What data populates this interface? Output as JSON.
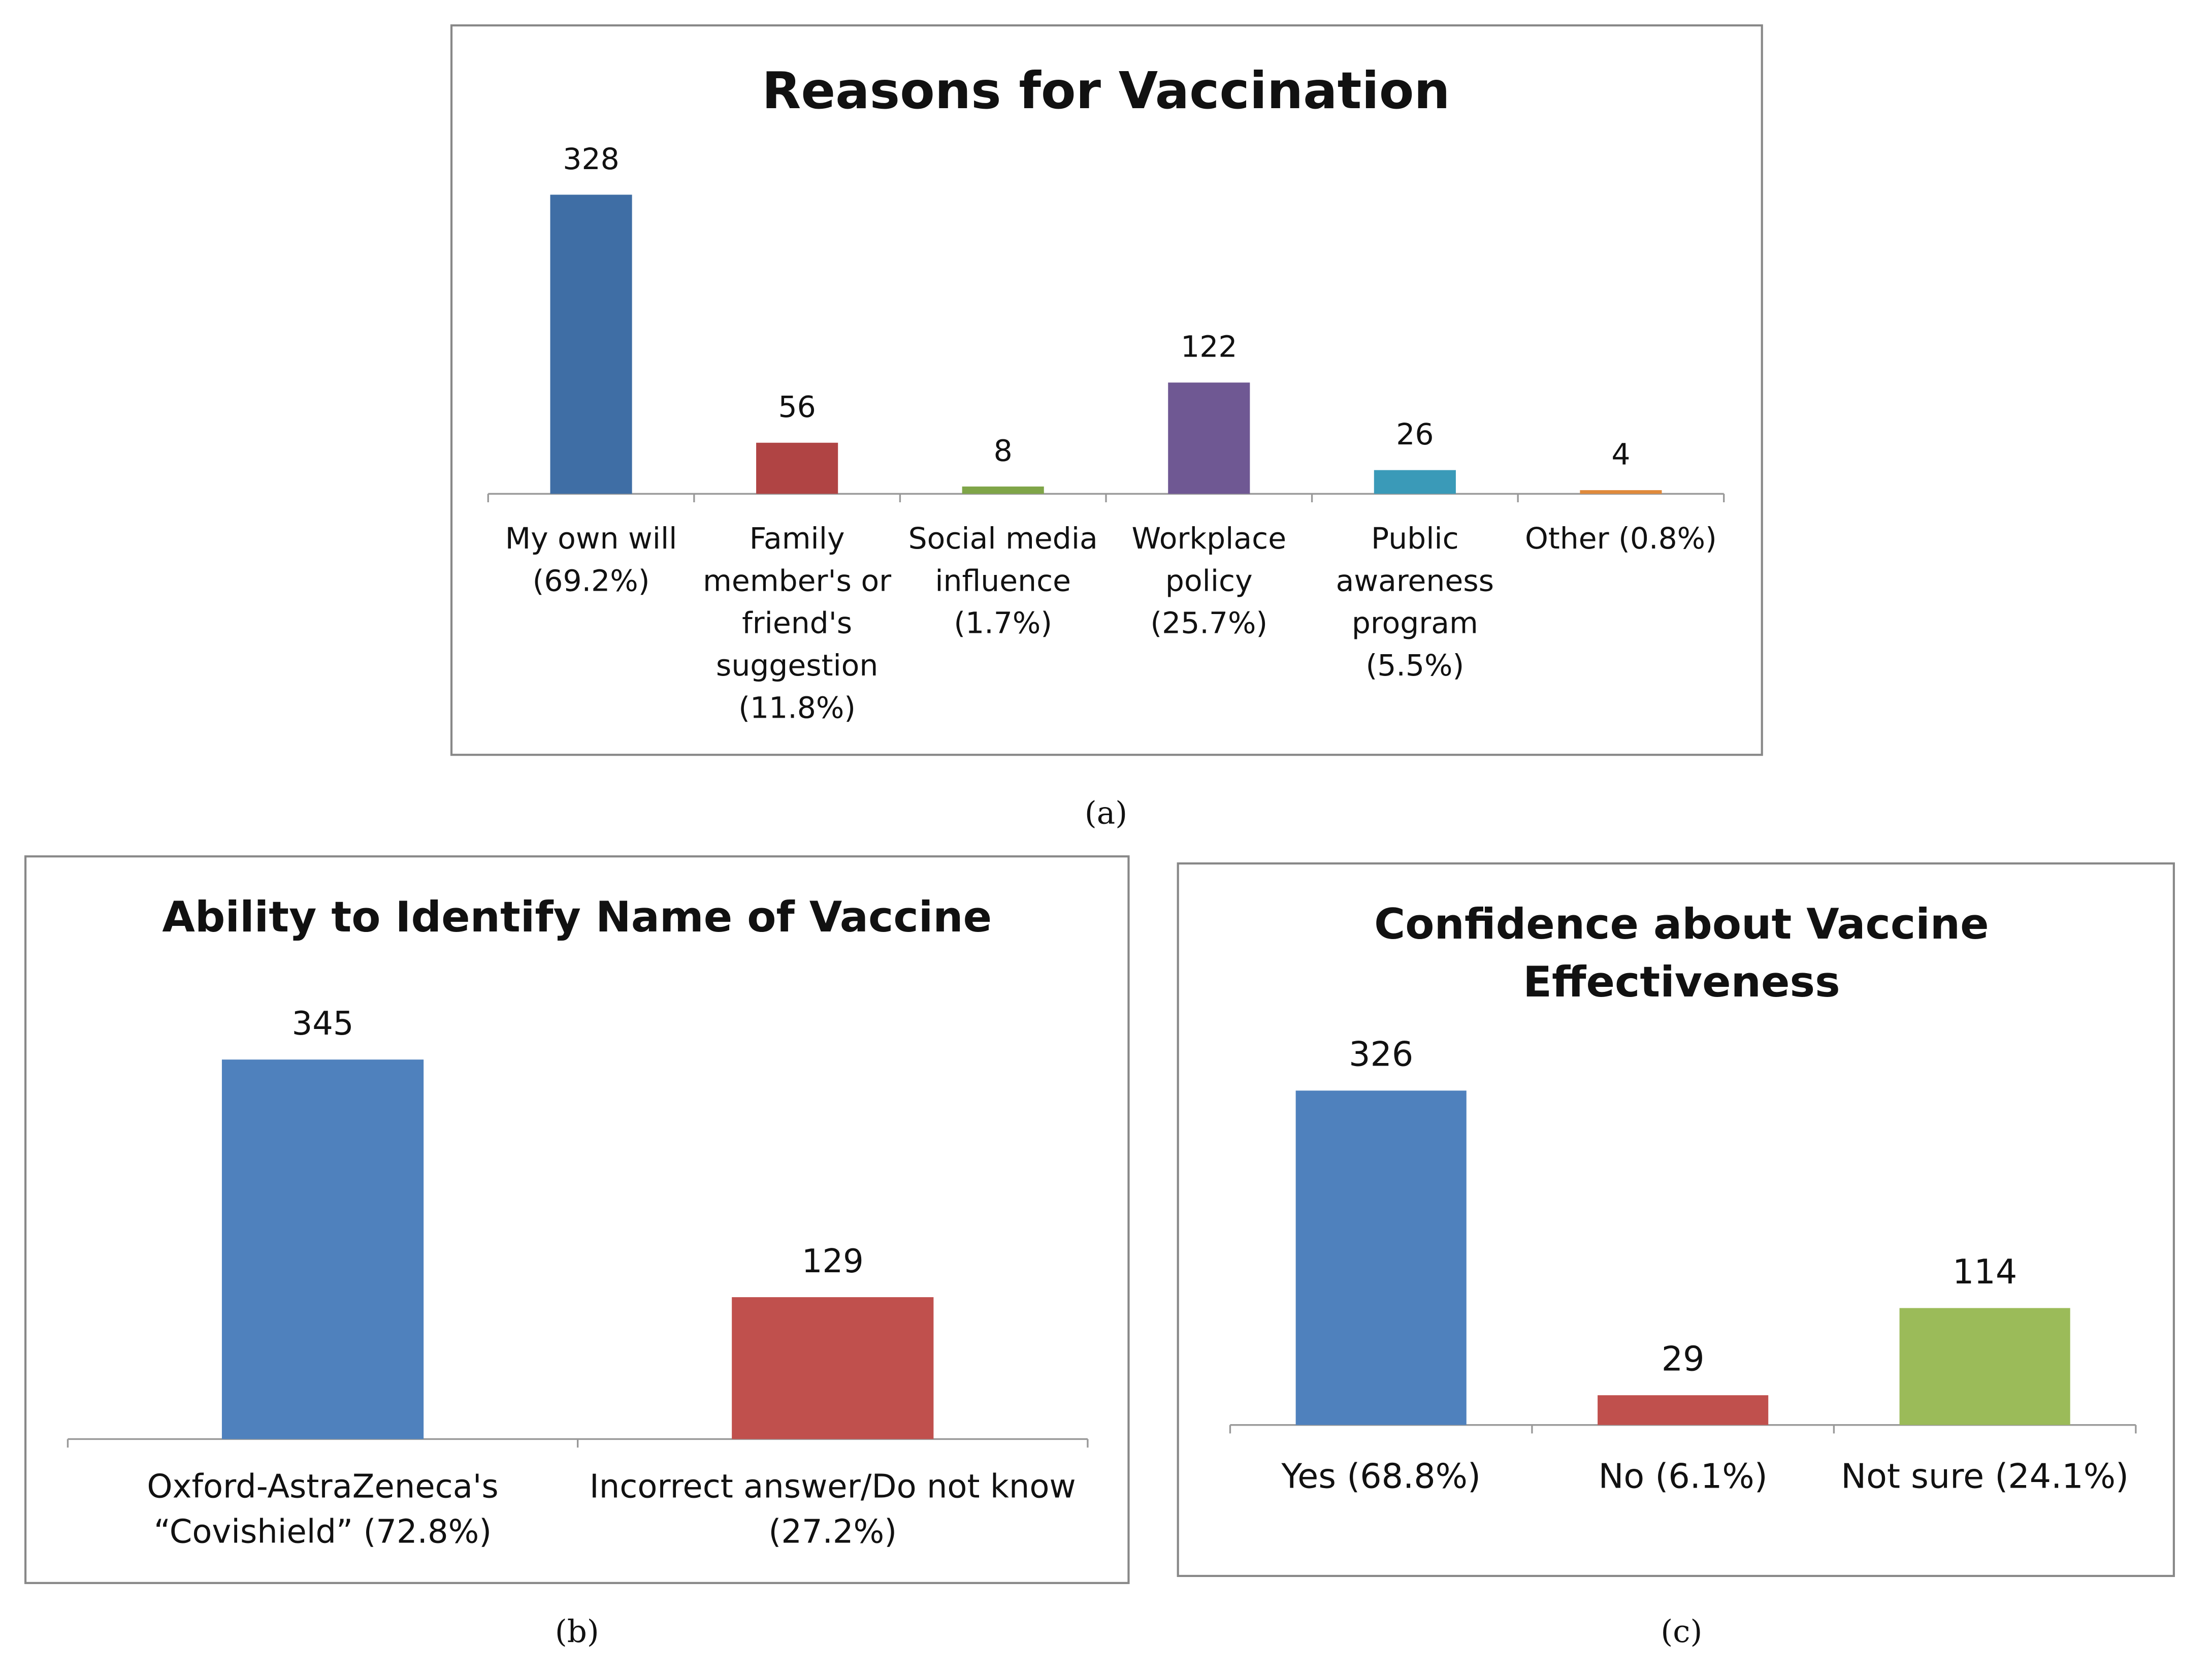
{
  "chart_data": [
    {
      "type": "bar",
      "title": "Reasons for Vaccination",
      "caption": "(a)",
      "categories": [
        "My own will (69.2%)",
        "Family member's or friend's suggestion (11.8%)",
        "Social media influence (1.7%)",
        "Workplace policy (25.7%)",
        "Public awareness program (5.5%)",
        "Other (0.8%)"
      ],
      "values": [
        328,
        56,
        8,
        122,
        26,
        4
      ],
      "colors": [
        "#3f6ea5",
        "#b04444",
        "#7fa548",
        "#6f5893",
        "#3a9ab8",
        "#e08a3c"
      ]
    },
    {
      "type": "bar",
      "title": "Ability to Identify Name of Vaccine",
      "caption": "(b)",
      "categories": [
        "Oxford-AstraZeneca's “Covishield” (72.8%)",
        "Incorrect answer/Do not know (27.2%)"
      ],
      "values": [
        345,
        129
      ],
      "colors": [
        "#4f81bd",
        "#c0504d"
      ]
    },
    {
      "type": "bar",
      "title": "Confidence about Vaccine Effectiveness",
      "caption": "(c)",
      "categories": [
        "Yes (68.8%)",
        "No (6.1%)",
        "Not sure (24.1%)"
      ],
      "values": [
        326,
        29,
        114
      ],
      "colors": [
        "#4f81bd",
        "#c0504d",
        "#9bbb59"
      ]
    }
  ]
}
